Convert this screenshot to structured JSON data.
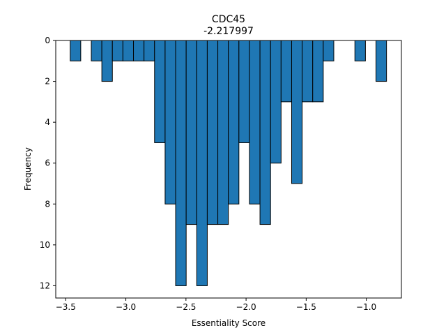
{
  "chart_data": {
    "type": "bar",
    "title": "CDC45",
    "subtitle": "-2.217997",
    "xlabel": "Essentiality Score",
    "ylabel": "Frequency",
    "xlim": [
      -3.583,
      -0.708
    ],
    "ylim": [
      0,
      12.6
    ],
    "y_inverted": true,
    "x_ticks": [
      -3.5,
      -3.0,
      -2.5,
      -2.0,
      -1.5,
      -1.0
    ],
    "x_tick_labels": [
      "−3.5",
      "−3.0",
      "−2.5",
      "−2.0",
      "−1.5",
      "−1.0"
    ],
    "y_ticks": [
      0,
      2,
      4,
      6,
      8,
      10,
      12
    ],
    "y_tick_labels": [
      "0",
      "2",
      "4",
      "6",
      "8",
      "10",
      "12"
    ],
    "bin_start": -3.4628,
    "bin_width": 0.0877,
    "values": [
      1,
      0,
      1,
      2,
      1,
      1,
      1,
      1,
      5,
      8,
      12,
      9,
      12,
      9,
      9,
      8,
      5,
      8,
      9,
      6,
      3,
      7,
      3,
      3,
      1,
      0,
      0,
      1,
      0,
      2
    ],
    "grid": false,
    "bar_color": "#1f77b4",
    "edge_color": "#000000"
  }
}
